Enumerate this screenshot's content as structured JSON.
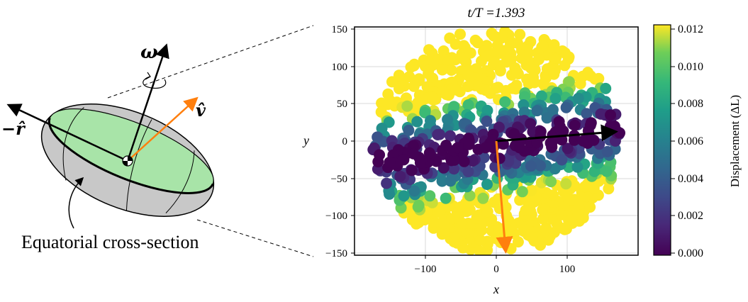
{
  "left_diagram": {
    "omega_symbol": "ω",
    "minus_r_symbol": "−r̂",
    "v_symbol": "v̂",
    "caption": "Equatorial cross-section"
  },
  "colors": {
    "body_fill": "#c8c8c8",
    "section_fill": "#a8e4a8",
    "v_arrow": "#ff7f0e",
    "outline": "#000000"
  },
  "chart_data": {
    "type": "scatter",
    "title": "t/T =1.393",
    "xlabel": "x",
    "ylabel": "y",
    "xlim": [
      -180,
      180
    ],
    "ylim": [
      -152,
      152
    ],
    "x_ticks": [
      -100,
      0,
      100
    ],
    "x_tick_labels": [
      "−100",
      "0",
      "100"
    ],
    "y_ticks": [
      150,
      100,
      50,
      0,
      -50,
      -100,
      -150
    ],
    "y_tick_labels": [
      "150",
      "100",
      "50",
      "0",
      "−50",
      "−100",
      "−150"
    ],
    "grid": true,
    "colorbar": {
      "label": "Displacement (ΔL)",
      "range": [
        0.0,
        0.012
      ],
      "ticks": [
        "0.012",
        "0.010",
        "0.008",
        "0.006",
        "0.004",
        "0.002",
        "0.000"
      ],
      "colormap": "viridis"
    },
    "arrows": [
      {
        "name": "black-vector",
        "from": [
          0,
          0
        ],
        "to": [
          160,
          12
        ],
        "color": "#000000"
      },
      {
        "name": "orange-vector",
        "from": [
          0,
          0
        ],
        "to": [
          12,
          -150
        ],
        "color": "#ff7f0e"
      }
    ],
    "disk": {
      "center": [
        0,
        0
      ],
      "rx": 175,
      "ry": 150
    }
  }
}
